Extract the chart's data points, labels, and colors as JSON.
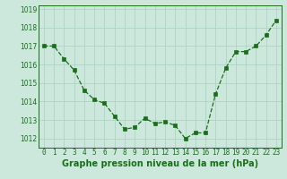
{
  "x": [
    0,
    1,
    2,
    3,
    4,
    5,
    6,
    7,
    8,
    9,
    10,
    11,
    12,
    13,
    14,
    15,
    16,
    17,
    18,
    19,
    20,
    21,
    22,
    23
  ],
  "y": [
    1017.0,
    1017.0,
    1016.3,
    1015.7,
    1014.6,
    1014.1,
    1013.9,
    1013.2,
    1012.5,
    1012.6,
    1013.1,
    1012.8,
    1012.9,
    1012.7,
    1012.0,
    1012.3,
    1012.3,
    1014.4,
    1015.8,
    1016.7,
    1016.7,
    1017.0,
    1017.6,
    1018.4
  ],
  "line_color": "#1a6e1a",
  "marker_color": "#1a6e1a",
  "bg_color": "#cce8dc",
  "grid_color": "#aacfbe",
  "xlabel": "Graphe pression niveau de la mer (hPa)",
  "ylim": [
    1011.5,
    1019.2
  ],
  "yticks": [
    1012,
    1013,
    1014,
    1015,
    1016,
    1017,
    1018,
    1019
  ],
  "xticks": [
    0,
    1,
    2,
    3,
    4,
    5,
    6,
    7,
    8,
    9,
    10,
    11,
    12,
    13,
    14,
    15,
    16,
    17,
    18,
    19,
    20,
    21,
    22,
    23
  ],
  "tick_fontsize": 5.5,
  "xlabel_fontsize": 7.0
}
